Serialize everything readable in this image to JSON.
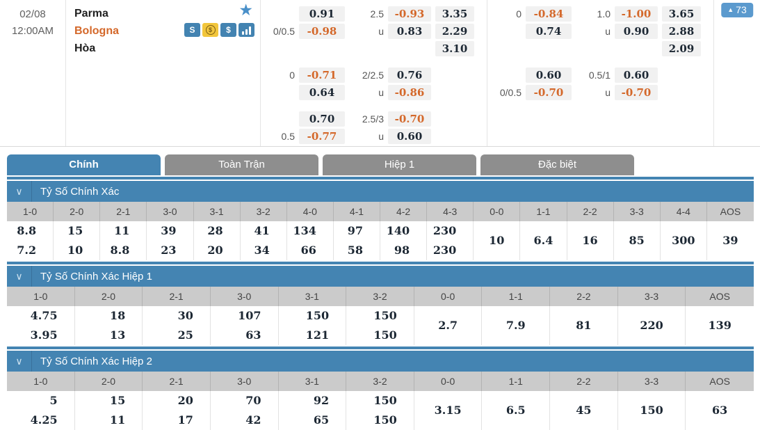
{
  "colors": {
    "accent_blue": "#4484b2",
    "badge_blue": "#5b9ace",
    "negative_orange": "#d4682a",
    "value_dark": "#1c2733",
    "inactive_tab_gray": "#8e8e8e",
    "header_row_gray": "#cbcbcb"
  },
  "match": {
    "date": "02/08",
    "time": "12:00AM",
    "home": "Parma",
    "away": "Bologna",
    "draw_label": "Hòa",
    "more_count": "73",
    "icons": [
      {
        "key": "ribbon",
        "name": "ribbon-icon",
        "glyph": "S"
      },
      {
        "key": "coin",
        "name": "coin-icon",
        "glyph": "$"
      },
      {
        "key": "dollar",
        "name": "dollar-icon",
        "glyph": "$"
      },
      {
        "key": "bars",
        "name": "bar-chart-icon",
        "glyph": ""
      }
    ]
  },
  "odds_blocks": [
    {
      "rows": [
        {
          "hl": "",
          "hv": "0.91",
          "ol": "2.5",
          "ov": "-0.93",
          "x": "3.35"
        },
        {
          "hl": "0/0.5",
          "hv": "-0.98",
          "ol": "u",
          "ov": "0.83",
          "x": "2.29"
        },
        {
          "hl": "",
          "hv": "",
          "ol": "",
          "ov": "",
          "x": "3.10"
        },
        {
          "spacer": true
        },
        {
          "hl": "0",
          "hv": "-0.71",
          "ol": "2/2.5",
          "ov": "0.76",
          "x": ""
        },
        {
          "hl": "",
          "hv": "0.64",
          "ol": "u",
          "ov": "-0.86",
          "x": ""
        },
        {
          "spacer": true
        },
        {
          "hl": "",
          "hv": "0.70",
          "ol": "2.5/3",
          "ov": "-0.70",
          "x": ""
        },
        {
          "hl": "0.5",
          "hv": "-0.77",
          "ol": "u",
          "ov": "0.60",
          "x": ""
        }
      ]
    },
    {
      "rows": [
        {
          "hl": "0",
          "hv": "-0.84",
          "ol": "1.0",
          "ov": "-1.00",
          "x": "3.65"
        },
        {
          "hl": "",
          "hv": "0.74",
          "ol": "u",
          "ov": "0.90",
          "x": "2.88"
        },
        {
          "hl": "",
          "hv": "",
          "ol": "",
          "ov": "",
          "x": "2.09"
        },
        {
          "spacer": true
        },
        {
          "hl": "",
          "hv": "0.60",
          "ol": "0.5/1",
          "ov": "0.60",
          "x": ""
        },
        {
          "hl": "0/0.5",
          "hv": "-0.70",
          "ol": "u",
          "ov": "-0.70",
          "x": ""
        }
      ]
    }
  ],
  "tabs": [
    {
      "key": "chinh",
      "label": "Chính",
      "active": true
    },
    {
      "key": "toan-tran",
      "label": "Toàn Trận",
      "active": false
    },
    {
      "key": "hiep-1",
      "label": "Hiệp 1",
      "active": false
    },
    {
      "key": "dac-biet",
      "label": "Đặc biệt",
      "active": false
    }
  ],
  "sections": [
    {
      "title": "Tỷ Số Chính Xác",
      "columns": [
        {
          "score": "1-0",
          "odds": [
            "8.8",
            "7.2"
          ]
        },
        {
          "score": "2-0",
          "odds": [
            "15",
            "10"
          ]
        },
        {
          "score": "2-1",
          "odds": [
            "11",
            "8.8"
          ]
        },
        {
          "score": "3-0",
          "odds": [
            "39",
            "23"
          ]
        },
        {
          "score": "3-1",
          "odds": [
            "28",
            "20"
          ]
        },
        {
          "score": "3-2",
          "odds": [
            "41",
            "34"
          ]
        },
        {
          "score": "4-0",
          "odds": [
            "134",
            "66"
          ]
        },
        {
          "score": "4-1",
          "odds": [
            "97",
            "58"
          ]
        },
        {
          "score": "4-2",
          "odds": [
            "140",
            "98"
          ]
        },
        {
          "score": "4-3",
          "odds": [
            "230",
            "230"
          ]
        },
        {
          "score": "0-0",
          "odds": [
            "10"
          ]
        },
        {
          "score": "1-1",
          "odds": [
            "6.4"
          ]
        },
        {
          "score": "2-2",
          "odds": [
            "16"
          ]
        },
        {
          "score": "3-3",
          "odds": [
            "85"
          ]
        },
        {
          "score": "4-4",
          "odds": [
            "300"
          ]
        },
        {
          "score": "AOS",
          "odds": [
            "39"
          ]
        }
      ]
    },
    {
      "title": "Tỷ Số Chính Xác Hiệp 1",
      "columns": [
        {
          "score": "1-0",
          "odds": [
            "4.75",
            "3.95"
          ]
        },
        {
          "score": "2-0",
          "odds": [
            "18",
            "13"
          ]
        },
        {
          "score": "2-1",
          "odds": [
            "30",
            "25"
          ]
        },
        {
          "score": "3-0",
          "odds": [
            "107",
            "63"
          ]
        },
        {
          "score": "3-1",
          "odds": [
            "150",
            "121"
          ]
        },
        {
          "score": "3-2",
          "odds": [
            "150",
            "150"
          ]
        },
        {
          "score": "0-0",
          "odds": [
            "2.7"
          ]
        },
        {
          "score": "1-1",
          "odds": [
            "7.9"
          ]
        },
        {
          "score": "2-2",
          "odds": [
            "81"
          ]
        },
        {
          "score": "3-3",
          "odds": [
            "220"
          ]
        },
        {
          "score": "AOS",
          "odds": [
            "139"
          ]
        }
      ]
    },
    {
      "title": "Tỷ Số Chính Xác Hiệp 2",
      "columns": [
        {
          "score": "1-0",
          "odds": [
            "5",
            "4.25"
          ]
        },
        {
          "score": "2-0",
          "odds": [
            "15",
            "11"
          ]
        },
        {
          "score": "2-1",
          "odds": [
            "20",
            "17"
          ]
        },
        {
          "score": "3-0",
          "odds": [
            "70",
            "42"
          ]
        },
        {
          "score": "3-1",
          "odds": [
            "92",
            "65"
          ]
        },
        {
          "score": "3-2",
          "odds": [
            "150",
            "150"
          ]
        },
        {
          "score": "0-0",
          "odds": [
            "3.15"
          ]
        },
        {
          "score": "1-1",
          "odds": [
            "6.5"
          ]
        },
        {
          "score": "2-2",
          "odds": [
            "45"
          ]
        },
        {
          "score": "3-3",
          "odds": [
            "150"
          ]
        },
        {
          "score": "AOS",
          "odds": [
            "63"
          ]
        }
      ]
    }
  ]
}
